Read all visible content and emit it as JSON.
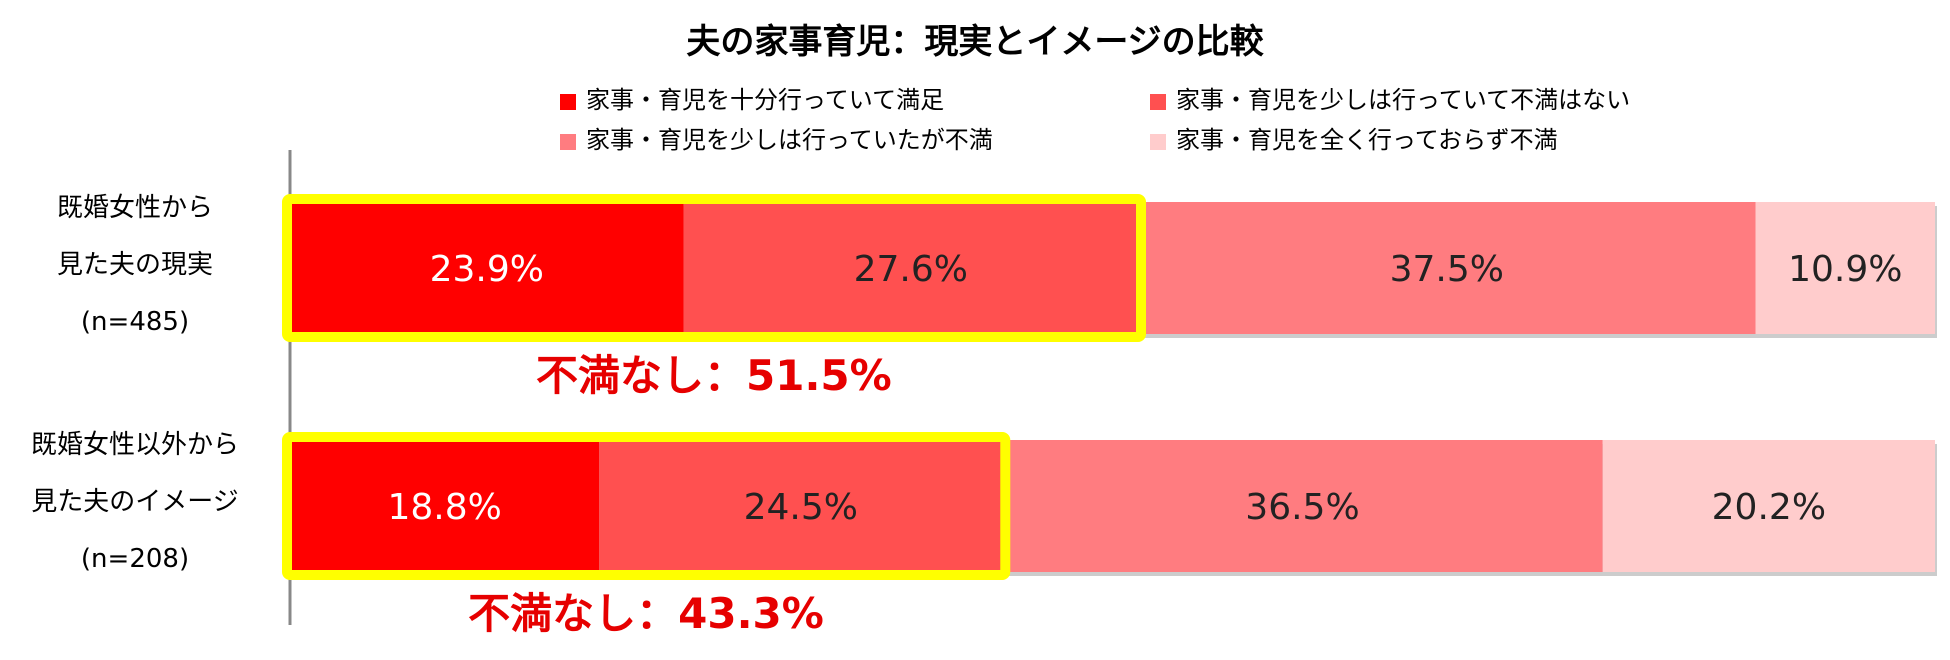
{
  "chart_data": {
    "type": "bar",
    "orientation": "horizontal",
    "stacked": true,
    "percent_stacked": true,
    "title": "夫の家事育児：現実とイメージの比較",
    "xlim": [
      0,
      100
    ],
    "grid": false,
    "legend_position": "top",
    "categories": [
      [
        "既婚女性から",
        "見た夫の現実",
        "(n=485)"
      ],
      [
        "既婚女性以外から",
        "見た夫のイメージ",
        "(n=208)"
      ]
    ],
    "series": [
      {
        "name": "家事・育児を十分行っていて満足",
        "color": "#ff0000",
        "values": [
          23.9,
          18.8
        ],
        "labels": [
          "23.9%",
          "18.8%"
        ],
        "label_color": "#ffffff"
      },
      {
        "name": "家事・育児を少しは行っていて不満はない",
        "color": "#ff5050",
        "values": [
          27.6,
          24.5
        ],
        "labels": [
          "27.6%",
          "24.5%"
        ],
        "label_color": "#222222"
      },
      {
        "name": "家事・育児を少しは行っていたが不満",
        "color": "#ff7c80",
        "values": [
          37.5,
          36.5
        ],
        "labels": [
          "37.5%",
          "36.5%"
        ],
        "label_color": "#222222"
      },
      {
        "name": "家事・育児を全く行っておらず不満",
        "color": "#ffcccc",
        "values": [
          10.9,
          20.2
        ],
        "labels": [
          "10.9%",
          "20.2%"
        ],
        "label_color": "#222222"
      }
    ],
    "annotations": [
      {
        "text": "不満なし：51.5%",
        "category_index": 0,
        "value": 51.5
      },
      {
        "text": "不満なし：43.3%",
        "category_index": 1,
        "value": 43.3
      }
    ],
    "highlight_color": "#ffff00",
    "note_color": "#e60000"
  }
}
